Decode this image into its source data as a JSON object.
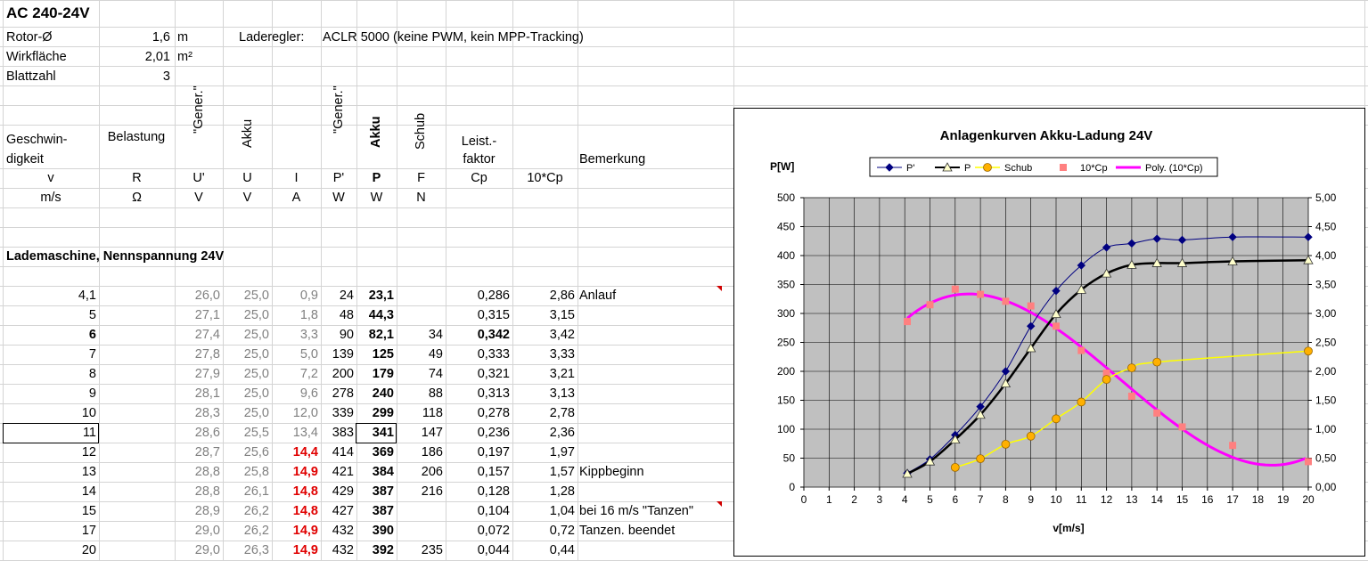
{
  "sheet": {
    "title": "AC 240-24V",
    "params": [
      {
        "label": "Rotor-Ø",
        "value": "1,6",
        "unit": "m"
      },
      {
        "label": "Wirkfläche",
        "value": "2,01",
        "unit": "m²"
      },
      {
        "label": "Blattzahl",
        "value": "3",
        "unit": ""
      }
    ],
    "laderegler_label": "Laderegler:",
    "laderegler_value": "ACLR 5000 (keine PWM, kein MPP-Tracking)",
    "headers": {
      "geschwin": "Geschwin-",
      "digkeit": "digkeit",
      "belastung": "Belastung",
      "gener1": "\"Gener.\"",
      "akku1": "Akku",
      "gener2": "\"Gener.\"",
      "akku2": "Akku",
      "schub": "Schub",
      "leist": "Leist.-",
      "faktor": "faktor",
      "bemerkung": "Bemerkung"
    },
    "symbols": [
      "v",
      "R",
      "U'",
      "U",
      "I",
      "P'",
      "P",
      "F",
      "Cp",
      "10*Cp"
    ],
    "units": [
      "m/s",
      "Ω",
      "V",
      "V",
      "A",
      "W",
      "W",
      "N"
    ],
    "section_title": "Lademaschine, Nennspannung 24V",
    "rows": [
      {
        "v": "4,1",
        "ug": "26,0",
        "u": "25,0",
        "i": "0,9",
        "pg": "24",
        "p": "23,1",
        "f": "",
        "cp": "0,286",
        "cp10": "2,86",
        "note": "Anlauf"
      },
      {
        "v": "5",
        "ug": "27,1",
        "u": "25,0",
        "i": "1,8",
        "pg": "48",
        "p": "44,3",
        "f": "",
        "cp": "0,315",
        "cp10": "3,15",
        "note": ""
      },
      {
        "v": "6",
        "ug": "27,4",
        "u": "25,0",
        "i": "3,3",
        "pg": "90",
        "p": "82,1",
        "f": "34",
        "cp": "0,342",
        "cp10": "3,42",
        "note": ""
      },
      {
        "v": "7",
        "ug": "27,8",
        "u": "25,0",
        "i": "5,0",
        "pg": "139",
        "p": "125",
        "f": "49",
        "cp": "0,333",
        "cp10": "3,33",
        "note": ""
      },
      {
        "v": "8",
        "ug": "27,9",
        "u": "25,0",
        "i": "7,2",
        "pg": "200",
        "p": "179",
        "f": "74",
        "cp": "0,321",
        "cp10": "3,21",
        "note": ""
      },
      {
        "v": "9",
        "ug": "28,1",
        "u": "25,0",
        "i": "9,6",
        "pg": "278",
        "p": "240",
        "f": "88",
        "cp": "0,313",
        "cp10": "3,13",
        "note": ""
      },
      {
        "v": "10",
        "ug": "28,3",
        "u": "25,0",
        "i": "12,0",
        "pg": "339",
        "p": "299",
        "f": "118",
        "cp": "0,278",
        "cp10": "2,78",
        "note": ""
      },
      {
        "v": "11",
        "ug": "28,6",
        "u": "25,5",
        "i": "13,4",
        "pg": "383",
        "p": "341",
        "f": "147",
        "cp": "0,236",
        "cp10": "2,36",
        "note": ""
      },
      {
        "v": "12",
        "ug": "28,7",
        "u": "25,6",
        "i": "14,4",
        "pg": "414",
        "p": "369",
        "f": "186",
        "cp": "0,197",
        "cp10": "1,97",
        "note": ""
      },
      {
        "v": "13",
        "ug": "28,8",
        "u": "25,8",
        "i": "14,9",
        "pg": "421",
        "p": "384",
        "f": "206",
        "cp": "0,157",
        "cp10": "1,57",
        "note": "Kippbeginn"
      },
      {
        "v": "14",
        "ug": "28,8",
        "u": "26,1",
        "i": "14,8",
        "pg": "429",
        "p": "387",
        "f": "216",
        "cp": "0,128",
        "cp10": "1,28",
        "note": ""
      },
      {
        "v": "15",
        "ug": "28,9",
        "u": "26,2",
        "i": "14,8",
        "pg": "427",
        "p": "387",
        "f": "",
        "cp": "0,104",
        "cp10": "1,04",
        "note": "bei 16 m/s \"Tanzen\""
      },
      {
        "v": "17",
        "ug": "29,0",
        "u": "26,2",
        "i": "14,9",
        "pg": "432",
        "p": "390",
        "f": "",
        "cp": "0,072",
        "cp10": "0,72",
        "note": "Tanzen. beendet"
      },
      {
        "v": "20",
        "ug": "29,0",
        "u": "26,3",
        "i": "14,9",
        "pg": "432",
        "p": "392",
        "f": "235",
        "cp": "0,044",
        "cp10": "0,44",
        "note": ""
      }
    ]
  },
  "chart_data": {
    "type": "line",
    "title": "Anlagenkurven Akku-Ladung 24V",
    "xlabel": "v[m/s]",
    "ylabel": "P[W]",
    "xlim": [
      0,
      20
    ],
    "ylim": [
      0,
      500
    ],
    "y2lim": [
      0,
      5
    ],
    "x_ticks": [
      "0",
      "1",
      "2",
      "3",
      "4",
      "5",
      "6",
      "7",
      "8",
      "9",
      "10",
      "11",
      "12",
      "13",
      "14",
      "15",
      "16",
      "17",
      "18",
      "19",
      "20"
    ],
    "y_ticks": [
      "0",
      "50",
      "100",
      "150",
      "200",
      "250",
      "300",
      "350",
      "400",
      "450",
      "500"
    ],
    "y2_ticks": [
      "0,00",
      "0,50",
      "1,00",
      "1,50",
      "2,00",
      "2,50",
      "3,00",
      "3,50",
      "4,00",
      "4,50",
      "5,00"
    ],
    "grid": true,
    "legend_position": "top",
    "series": [
      {
        "name": "P'",
        "color": "#000080",
        "marker": "diamond",
        "axis": "left",
        "x": [
          4.1,
          5,
          6,
          7,
          8,
          9,
          10,
          11,
          12,
          13,
          14,
          15,
          17,
          20
        ],
        "y": [
          24,
          48,
          90,
          139,
          200,
          278,
          339,
          383,
          414,
          421,
          429,
          427,
          432,
          432
        ]
      },
      {
        "name": "P",
        "color": "#000000",
        "marker": "triangle",
        "axis": "left",
        "x": [
          4.1,
          5,
          6,
          7,
          8,
          9,
          10,
          11,
          12,
          13,
          14,
          15,
          17,
          20
        ],
        "y": [
          23.1,
          44.3,
          82.1,
          125,
          179,
          240,
          299,
          341,
          369,
          384,
          387,
          387,
          390,
          392
        ]
      },
      {
        "name": "Schub",
        "color": "#ffff00",
        "marker": "circle",
        "axis": "left",
        "x": [
          6,
          7,
          8,
          9,
          10,
          11,
          12,
          13,
          14,
          20
        ],
        "y": [
          34,
          49,
          74,
          88,
          118,
          147,
          186,
          206,
          216,
          235
        ]
      },
      {
        "name": "10*Cp",
        "color": "#ff8080",
        "marker": "square",
        "axis": "right",
        "x": [
          4.1,
          5,
          6,
          7,
          8,
          9,
          10,
          11,
          12,
          13,
          14,
          15,
          17,
          20
        ],
        "y": [
          2.86,
          3.15,
          3.42,
          3.33,
          3.21,
          3.13,
          2.78,
          2.36,
          1.97,
          1.57,
          1.28,
          1.04,
          0.72,
          0.44
        ]
      },
      {
        "name": "Poly. (10*Cp)",
        "color": "#ff00ff",
        "marker": "none",
        "axis": "right",
        "trendline": "polynomial"
      }
    ]
  }
}
